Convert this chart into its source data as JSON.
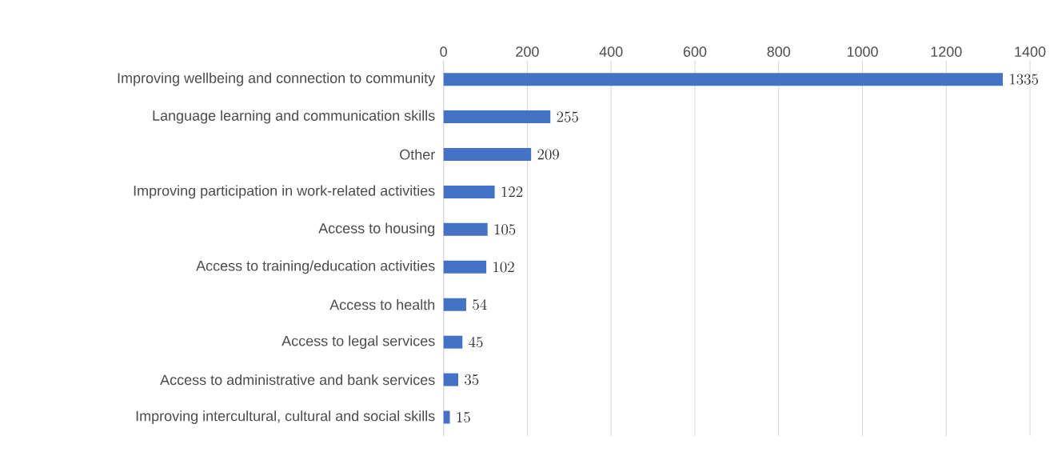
{
  "chart_data": {
    "type": "bar",
    "orientation": "horizontal",
    "categories": [
      "Improving wellbeing and connection to community",
      "Language learning and communication skills",
      "Other",
      "Improving participation in work-related activities",
      "Access to housing",
      "Access to training/education activities",
      "Access to health",
      "Access to legal services",
      "Access to administrative and bank services",
      "Improving intercultural, cultural and social skills"
    ],
    "values": [
      1335,
      255,
      209,
      122,
      105,
      102,
      54,
      45,
      35,
      15
    ],
    "color": "#4472c4",
    "xlim": [
      0,
      1400
    ],
    "xticks": [
      0,
      200,
      400,
      600,
      800,
      1000,
      1200,
      1400
    ],
    "grid": "x",
    "data_labels": true
  }
}
